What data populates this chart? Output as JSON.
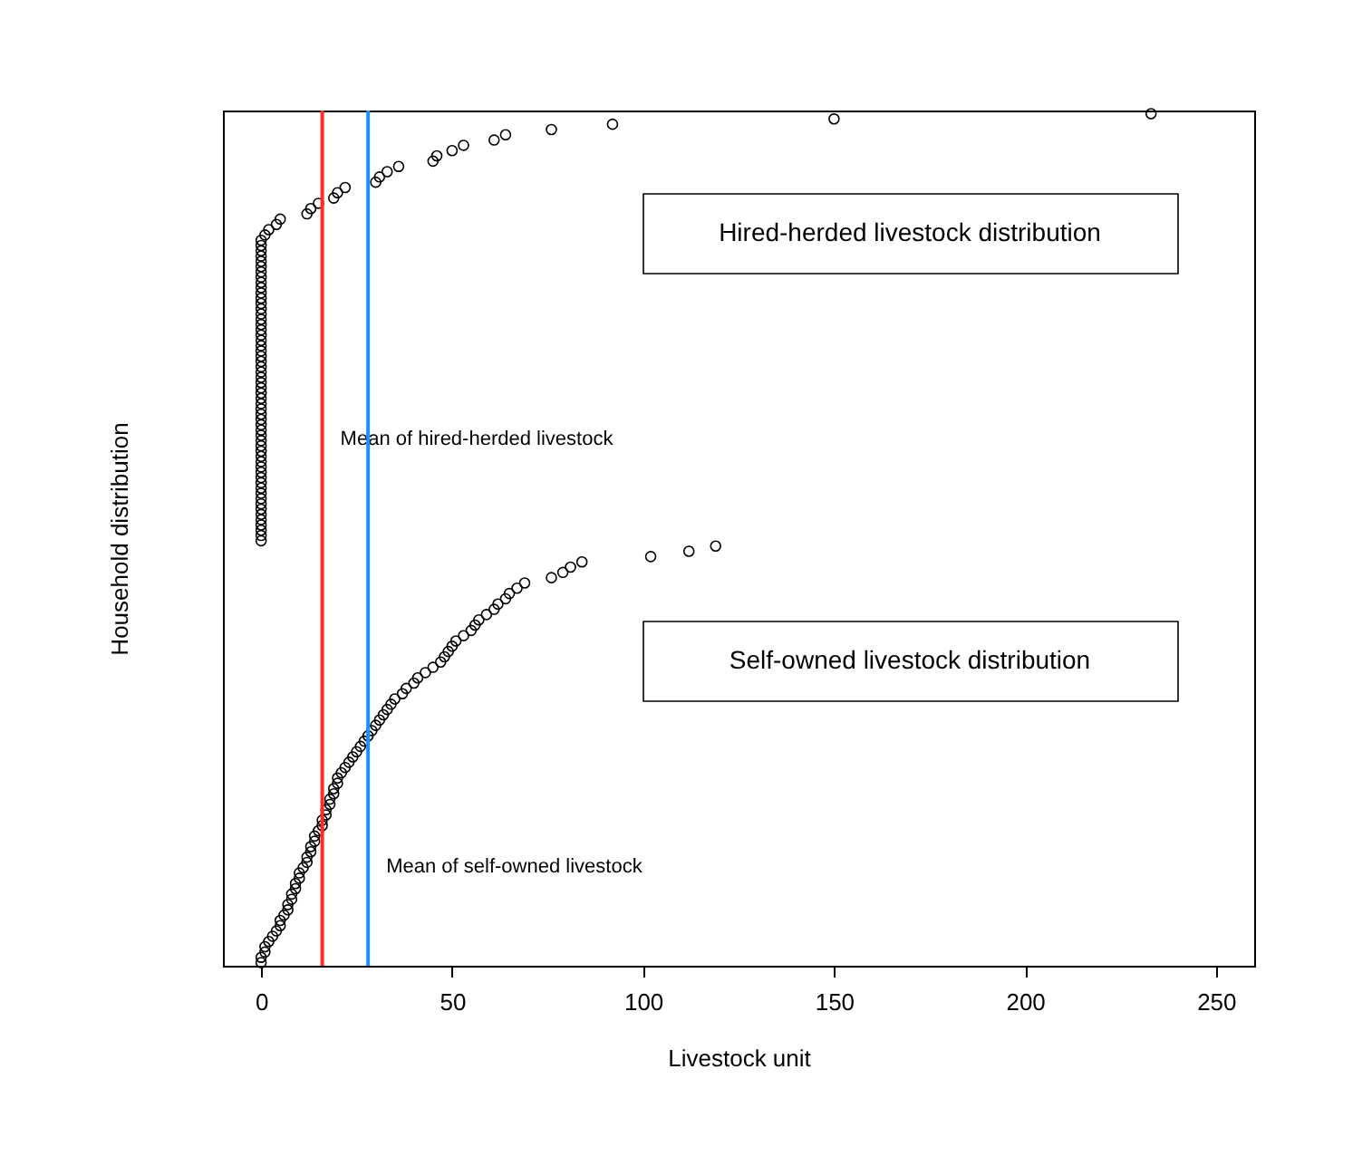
{
  "chart_data": {
    "type": "scatter",
    "orientation": "horizontal",
    "xlabel": "Livestock unit",
    "ylabel": "Household distribution",
    "marker": "circle",
    "categories": [
      null,
      null,
      null,
      null,
      null,
      null,
      null,
      null,
      null,
      null,
      null,
      null,
      null,
      null,
      null,
      null,
      null,
      null,
      null,
      null,
      null,
      null,
      null,
      null,
      null,
      null,
      null,
      null,
      null,
      null,
      null,
      null,
      null,
      null,
      null,
      null,
      null,
      null,
      null,
      null,
      null,
      null,
      null,
      null,
      null,
      null,
      null,
      null,
      null,
      null,
      null,
      null,
      null,
      null,
      null,
      null,
      null,
      null,
      null,
      null,
      null,
      null,
      null,
      null,
      null,
      null,
      null,
      null,
      null,
      null,
      null,
      null,
      null,
      null,
      null,
      null,
      null,
      null,
      null,
      null,
      null,
      null,
      null,
      null,
      null,
      null,
      null,
      null,
      null,
      null,
      null,
      null,
      null,
      null,
      null,
      null,
      null,
      null,
      null,
      null,
      null,
      null,
      null,
      null,
      null,
      null,
      null,
      null,
      null,
      null,
      null,
      null,
      null,
      null,
      null,
      null,
      null,
      null,
      null,
      null,
      null,
      null,
      null,
      null,
      null,
      null,
      null,
      null,
      null,
      null,
      null,
      null,
      null,
      null,
      null,
      null,
      null,
      null,
      null,
      null,
      null,
      null,
      null,
      null,
      null,
      null,
      null,
      null,
      null,
      null,
      null,
      null,
      null,
      null,
      null,
      null,
      null,
      null,
      null,
      null,
      null,
      null
    ],
    "series": [
      {
        "color": "#000000",
        "values": [
          233,
          150,
          92,
          76,
          64,
          61,
          53,
          50,
          46,
          45,
          36,
          33,
          31,
          30,
          22,
          20,
          19,
          15,
          13,
          12,
          5,
          4,
          2,
          1,
          0,
          0,
          0,
          0,
          0,
          0,
          0,
          0,
          0,
          0,
          0,
          0,
          0,
          0,
          0,
          0,
          0,
          0,
          0,
          0,
          0,
          0,
          0,
          0,
          0,
          0,
          0,
          0,
          0,
          0,
          0,
          0,
          0,
          0,
          0,
          0,
          0,
          0,
          0,
          0,
          0,
          0,
          0,
          0,
          0,
          0,
          0,
          0,
          0,
          0,
          0,
          0,
          0,
          0,
          0,
          0,
          0,
          0,
          null,
          null,
          null,
          null,
          null,
          null,
          null,
          null,
          null,
          null,
          null,
          null,
          null,
          null,
          null,
          null,
          null,
          null,
          null,
          null,
          null,
          null,
          null,
          null,
          null,
          null,
          null,
          null,
          null,
          null,
          null,
          null,
          null,
          null,
          null,
          null,
          null,
          null,
          null,
          null,
          null,
          null,
          null,
          null,
          null,
          null,
          null,
          null,
          null,
          null,
          null,
          null,
          null,
          null,
          null,
          null,
          null,
          null,
          null,
          null,
          null,
          null,
          null,
          null,
          null,
          null,
          null,
          null,
          null,
          null,
          null,
          null,
          null,
          null,
          null,
          null,
          null,
          null,
          null,
          null
        ]
      },
      {
        "color": "#000000",
        "values": [
          null,
          null,
          null,
          null,
          null,
          null,
          null,
          null,
          null,
          null,
          null,
          null,
          null,
          null,
          null,
          null,
          null,
          null,
          null,
          null,
          null,
          null,
          null,
          null,
          null,
          null,
          null,
          null,
          null,
          null,
          null,
          null,
          null,
          null,
          null,
          null,
          null,
          null,
          null,
          null,
          null,
          null,
          null,
          null,
          null,
          null,
          null,
          null,
          null,
          null,
          null,
          null,
          null,
          null,
          null,
          null,
          null,
          null,
          null,
          null,
          null,
          null,
          null,
          null,
          null,
          null,
          null,
          null,
          null,
          null,
          null,
          null,
          null,
          null,
          null,
          null,
          null,
          null,
          null,
          null,
          null,
          null,
          119,
          112,
          102,
          84,
          81,
          79,
          76,
          69,
          67,
          65,
          64,
          62,
          61,
          59,
          57,
          56,
          55,
          53,
          51,
          50,
          49,
          48,
          47,
          45,
          43,
          41,
          40,
          38,
          37,
          35,
          34,
          33,
          32,
          31,
          30,
          29,
          28,
          27,
          26,
          25,
          24,
          23,
          22,
          21,
          20,
          20,
          19,
          19,
          18,
          18,
          17,
          17,
          16,
          16,
          15,
          14,
          14,
          13,
          13,
          12,
          12,
          11,
          10,
          10,
          9,
          9,
          8,
          8,
          7,
          7,
          6,
          5,
          5,
          4,
          3,
          2,
          1,
          1,
          0,
          0
        ]
      }
    ],
    "xlim": [
      -10,
      260
    ],
    "xticks": [
      0,
      50,
      100,
      150,
      200,
      250
    ],
    "ref_lines": [
      {
        "axis": "x",
        "value": 16,
        "label": "Mean of hired-herded livestock",
        "color": "#ff2a2a"
      },
      {
        "axis": "x",
        "value": 28,
        "label": "Mean of self-owned livestock",
        "color": "#1e90ff"
      }
    ],
    "annotations": [
      "Hired-herded livestock distribution",
      "Self-owned livestock distribution"
    ]
  }
}
